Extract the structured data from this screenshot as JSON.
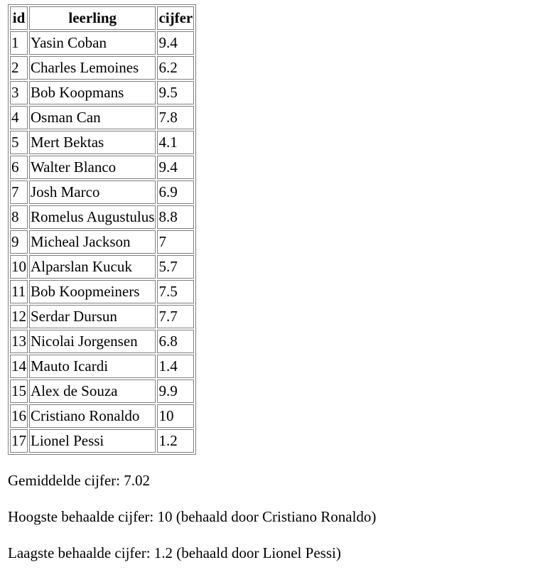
{
  "table": {
    "headers": [
      "id",
      "leerling",
      "cijfer"
    ],
    "rows": [
      {
        "id": "1",
        "leerling": "Yasin Coban",
        "cijfer": "9.4"
      },
      {
        "id": "2",
        "leerling": "Charles Lemoines",
        "cijfer": "6.2"
      },
      {
        "id": "3",
        "leerling": "Bob Koopmans",
        "cijfer": "9.5"
      },
      {
        "id": "4",
        "leerling": "Osman Can",
        "cijfer": "7.8"
      },
      {
        "id": "5",
        "leerling": "Mert Bektas",
        "cijfer": "4.1"
      },
      {
        "id": "6",
        "leerling": "Walter Blanco",
        "cijfer": "9.4"
      },
      {
        "id": "7",
        "leerling": "Josh Marco",
        "cijfer": "6.9"
      },
      {
        "id": "8",
        "leerling": "Romelus Augustulus",
        "cijfer": "8.8"
      },
      {
        "id": "9",
        "leerling": "Micheal Jackson",
        "cijfer": "7"
      },
      {
        "id": "10",
        "leerling": "Alparslan Kucuk",
        "cijfer": "5.7"
      },
      {
        "id": "11",
        "leerling": "Bob Koopmeiners",
        "cijfer": "7.5"
      },
      {
        "id": "12",
        "leerling": "Serdar Dursun",
        "cijfer": "7.7"
      },
      {
        "id": "13",
        "leerling": "Nicolai Jorgensen",
        "cijfer": "6.8"
      },
      {
        "id": "14",
        "leerling": "Mauto Icardi",
        "cijfer": "1.4"
      },
      {
        "id": "15",
        "leerling": "Alex de Souza",
        "cijfer": "9.9"
      },
      {
        "id": "16",
        "leerling": "Cristiano Ronaldo",
        "cijfer": "10"
      },
      {
        "id": "17",
        "leerling": "Lionel Pessi",
        "cijfer": "1.2"
      }
    ]
  },
  "summary": {
    "average": "Gemiddelde cijfer: 7.02",
    "highest": "Hoogste behaalde cijfer: 10 (behaald door Cristiano Ronaldo)",
    "lowest": "Laagste behaalde cijfer: 1.2 (behaald door Lionel Pessi)"
  },
  "colors": {
    "border": "#808080",
    "text": "#000000",
    "background": "#ffffff"
  }
}
